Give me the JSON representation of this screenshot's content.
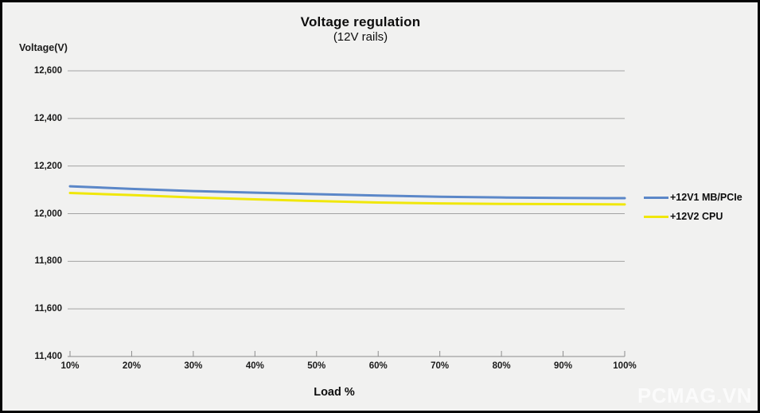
{
  "chart": {
    "title": "Voltage regulation",
    "subtitle": "(12V rails)",
    "y_axis_title": "Voltage(V)",
    "x_axis_title": "Load %"
  },
  "watermark": {
    "text": "PCMAG.VN"
  },
  "colors": {
    "background": "#F1F1F0",
    "frame_border": "#050505",
    "grid": "#A3A3A3",
    "axis": "#8C8C8C",
    "text": "#1A1A1A",
    "series_blue": "#5B87C8",
    "series_yellow": "#F0E70A",
    "watermark": "#FBFBFB"
  },
  "chart_data": {
    "type": "line",
    "title": "Voltage regulation",
    "subtitle": "(12V rails)",
    "xlabel": "Load %",
    "ylabel": "Voltage(V)",
    "categories": [
      "10%",
      "20%",
      "30%",
      "40%",
      "50%",
      "60%",
      "70%",
      "80%",
      "90%",
      "100%"
    ],
    "series": [
      {
        "name": "+12V1 MB/PCIe",
        "color_key": "series_blue",
        "values": [
          12.115,
          12.104,
          12.095,
          12.088,
          12.082,
          12.076,
          12.071,
          12.068,
          12.066,
          12.065
        ]
      },
      {
        "name": "+12V2 CPU",
        "color_key": "series_yellow",
        "values": [
          12.087,
          12.078,
          12.068,
          12.06,
          12.053,
          12.047,
          12.043,
          12.041,
          12.04,
          12.039
        ]
      }
    ],
    "y_ticks": [
      {
        "label": "12,600",
        "value": 12.6
      },
      {
        "label": "12,400",
        "value": 12.4
      },
      {
        "label": "12,200",
        "value": 12.2
      },
      {
        "label": "12,000",
        "value": 12.0
      },
      {
        "label": "11,800",
        "value": 11.8
      },
      {
        "label": "11,600",
        "value": 11.6
      },
      {
        "label": "11,400",
        "value": 11.4
      }
    ],
    "ylim": [
      11.4,
      12.6
    ],
    "grid": "horizontal",
    "legend_position": "right"
  }
}
